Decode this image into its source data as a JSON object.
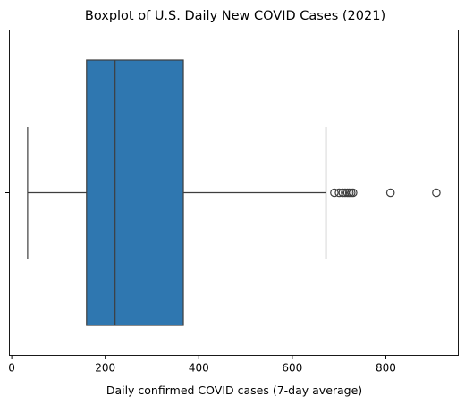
{
  "chart_data": {
    "type": "boxplot",
    "title": "Boxplot of U.S. Daily New COVID Cases (2021)",
    "xlabel": "Daily confirmed COVID cases (7-day average)",
    "ylabel": "",
    "orientation": "horizontal",
    "xlim": [
      -5,
      955
    ],
    "xticks": [
      0,
      200,
      400,
      600,
      800
    ],
    "grid": false,
    "box": {
      "whisker_low": 34,
      "q1": 160,
      "median": 221,
      "q3": 367,
      "whisker_high": 672,
      "outliers": [
        690,
        700,
        708,
        713,
        718,
        722,
        726,
        730,
        810,
        908
      ]
    },
    "colors": {
      "box_fill": "#2f77b0",
      "lines": "#3e3e3e"
    }
  }
}
